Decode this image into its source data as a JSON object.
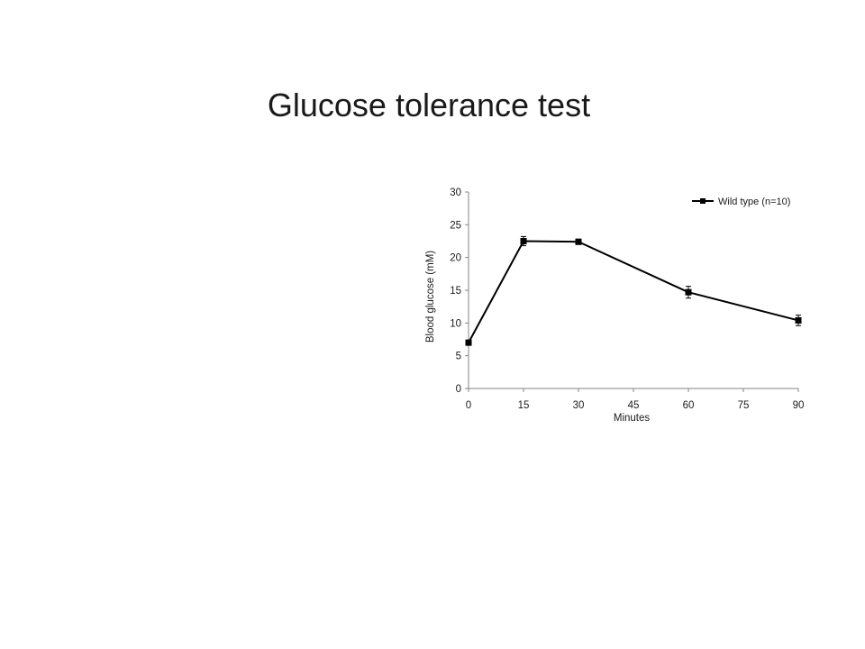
{
  "slide": {
    "title": "Glucose tolerance test"
  },
  "chart_data": {
    "type": "line",
    "title": "",
    "xlabel": "Minutes",
    "ylabel": "Blood glucose (mM)",
    "xlim": [
      0,
      90
    ],
    "ylim": [
      0,
      30
    ],
    "x_ticks": [
      0,
      15,
      30,
      45,
      60,
      75,
      90
    ],
    "y_ticks": [
      0,
      5,
      10,
      15,
      20,
      25,
      30
    ],
    "grid": false,
    "legend_position": "top-right",
    "series": [
      {
        "name": "Wild type (n=10)",
        "color": "#000000",
        "marker": "square",
        "x": [
          0,
          15,
          30,
          60,
          90
        ],
        "y": [
          7.0,
          22.5,
          22.4,
          14.7,
          10.4
        ],
        "error": [
          0.0,
          0.7,
          0.4,
          0.9,
          0.8
        ]
      }
    ]
  }
}
